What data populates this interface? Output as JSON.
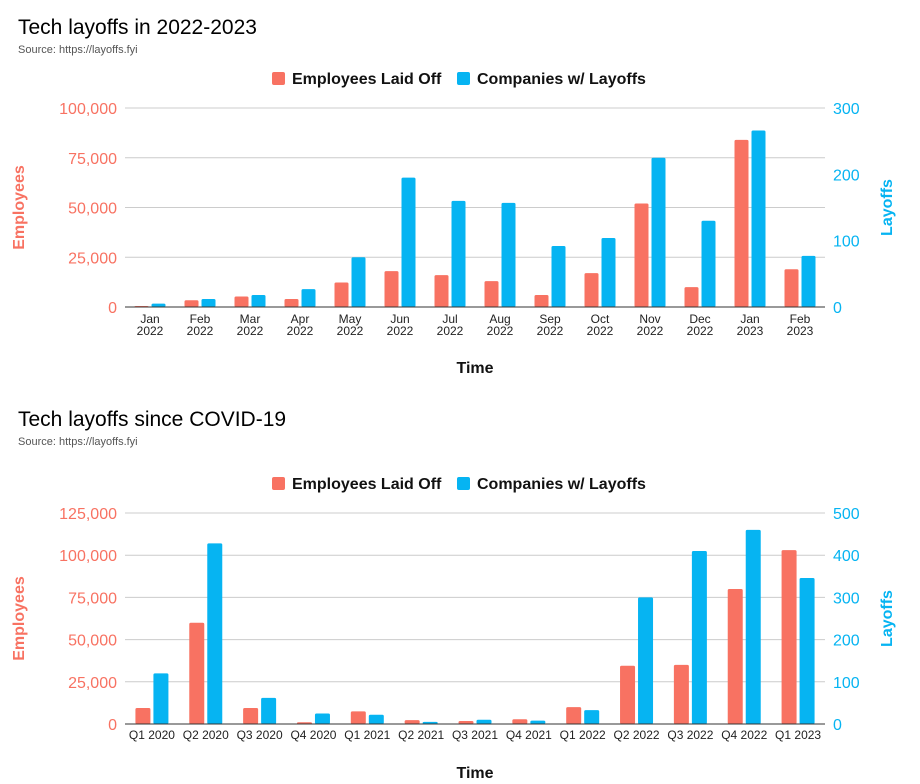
{
  "colors": {
    "employees": "#f87262",
    "companies": "#06b4f2",
    "grid": "#cccccc",
    "axis": "#333333"
  },
  "chart_data": [
    {
      "type": "bar",
      "title": "Tech layoffs in 2022-2023",
      "subtitle": "Source: https://layoffs.fyi",
      "xlabel": "Time",
      "ylabel": "Employees",
      "y2label": "Layoffs",
      "legend_position": "top-center",
      "grid": true,
      "categories": [
        [
          "Jan",
          "2022"
        ],
        [
          "Feb",
          "2022"
        ],
        [
          "Mar",
          "2022"
        ],
        [
          "Apr",
          "2022"
        ],
        [
          "May",
          "2022"
        ],
        [
          "Jun",
          "2022"
        ],
        [
          "Jul",
          "2022"
        ],
        [
          "Aug",
          "2022"
        ],
        [
          "Sep",
          "2022"
        ],
        [
          "Oct",
          "2022"
        ],
        [
          "Nov",
          "2022"
        ],
        [
          "Dec",
          "2022"
        ],
        [
          "Jan",
          "2023"
        ],
        [
          "Feb",
          "2023"
        ]
      ],
      "ylim": [
        0,
        100000
      ],
      "yticks": [
        0,
        25000,
        50000,
        75000,
        100000
      ],
      "yticklabels": [
        "0",
        "25,000",
        "50,000",
        "75,000",
        "100,000"
      ],
      "y2lim": [
        0,
        300
      ],
      "y2ticks": [
        0,
        100,
        200,
        300
      ],
      "y2ticklabels": [
        "0",
        "100",
        "200",
        "300"
      ],
      "series": [
        {
          "name": "Employees Laid Off",
          "axis": "left",
          "values": [
            500,
            3400,
            5300,
            4000,
            12300,
            18000,
            16000,
            13000,
            6000,
            17000,
            52000,
            10000,
            84000,
            19000
          ]
        },
        {
          "name": "Companies w/ Layoffs",
          "axis": "right",
          "values": [
            5,
            12,
            18,
            27,
            75,
            195,
            160,
            157,
            92,
            104,
            225,
            130,
            266,
            77
          ]
        }
      ]
    },
    {
      "type": "bar",
      "title": "Tech layoffs since COVID-19",
      "subtitle": "Source: https://layoffs.fyi",
      "xlabel": "Time",
      "ylabel": "Employees",
      "y2label": "Layoffs",
      "legend_position": "top-center",
      "grid": true,
      "categories": [
        [
          "Q1 2020"
        ],
        [
          "Q2 2020"
        ],
        [
          "Q3 2020"
        ],
        [
          "Q4 2020"
        ],
        [
          "Q1 2021"
        ],
        [
          "Q2 2021"
        ],
        [
          "Q3 2021"
        ],
        [
          "Q4 2021"
        ],
        [
          "Q1 2022"
        ],
        [
          "Q2 2022"
        ],
        [
          "Q3 2022"
        ],
        [
          "Q4 2022"
        ],
        [
          "Q1 2023"
        ]
      ],
      "ylim": [
        0,
        125000
      ],
      "yticks": [
        0,
        25000,
        50000,
        75000,
        100000,
        125000
      ],
      "yticklabels": [
        "0",
        "25,000",
        "50,000",
        "75,000",
        "100,000",
        "125,000"
      ],
      "y2lim": [
        0,
        500
      ],
      "y2ticks": [
        0,
        100,
        200,
        300,
        400,
        500
      ],
      "y2ticklabels": [
        "0",
        "100",
        "200",
        "300",
        "400",
        "500"
      ],
      "series": [
        {
          "name": "Employees Laid Off",
          "axis": "left",
          "values": [
            9500,
            60000,
            9500,
            1000,
            7500,
            2300,
            1800,
            2800,
            10000,
            34500,
            35000,
            80000,
            103000
          ]
        },
        {
          "name": "Companies w/ Layoffs",
          "axis": "right",
          "values": [
            120,
            428,
            62,
            25,
            22,
            5,
            10,
            8,
            33,
            300,
            410,
            460,
            346
          ]
        }
      ]
    }
  ]
}
